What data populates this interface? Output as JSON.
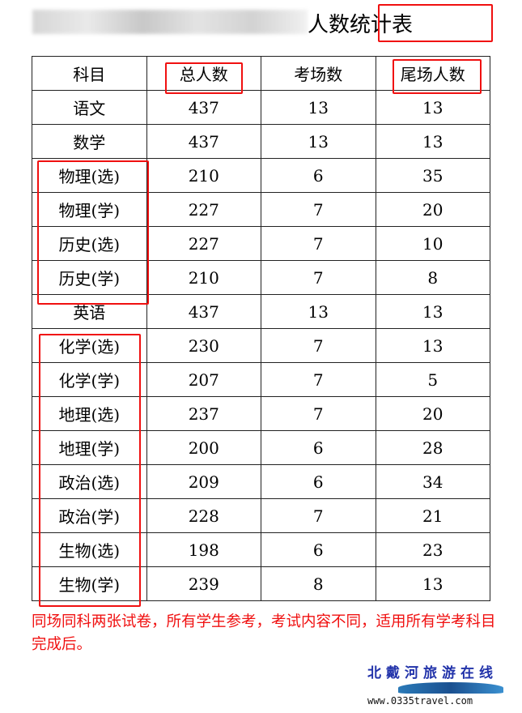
{
  "title": {
    "visible_text": "人数统计表",
    "note": "preceding text blurred"
  },
  "table": {
    "headers": [
      "科目",
      "总人数",
      "考场数",
      "尾场人数"
    ],
    "rows": [
      [
        "语文",
        "437",
        "13",
        "13"
      ],
      [
        "数学",
        "437",
        "13",
        "13"
      ],
      [
        "物理(选)",
        "210",
        "6",
        "35"
      ],
      [
        "物理(学)",
        "227",
        "7",
        "20"
      ],
      [
        "历史(选)",
        "227",
        "7",
        "10"
      ],
      [
        "历史(学)",
        "210",
        "7",
        "8"
      ],
      [
        "英语",
        "437",
        "13",
        "13"
      ],
      [
        "化学(选)",
        "230",
        "7",
        "13"
      ],
      [
        "化学(学)",
        "207",
        "7",
        "5"
      ],
      [
        "地理(选)",
        "237",
        "7",
        "20"
      ],
      [
        "地理(学)",
        "200",
        "6",
        "28"
      ],
      [
        "政治(选)",
        "209",
        "6",
        "34"
      ],
      [
        "政治(学)",
        "228",
        "7",
        "21"
      ],
      [
        "生物(选)",
        "198",
        "6",
        "23"
      ],
      [
        "生物(学)",
        "239",
        "8",
        "13"
      ]
    ]
  },
  "annotation": "同场同科两张试卷，所有学生参考，考试内容不同，适用所有学考科目完成后。",
  "watermark": {
    "logo_text": "北戴河旅游在线",
    "url": "www.0335travel.com"
  },
  "colors": {
    "highlight": "#f01010"
  }
}
